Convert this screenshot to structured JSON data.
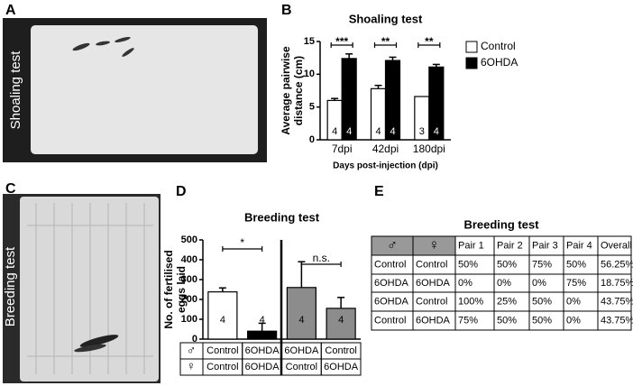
{
  "panel_letters": [
    "A",
    "B",
    "C",
    "D",
    "E"
  ],
  "photo_labels": [
    "Shoaling test",
    "Breeding test"
  ],
  "chart_data": [
    {
      "type": "grouped_bar",
      "title": "Shoaling test",
      "y_label": [
        "Average pairwise",
        "distance (cm)"
      ],
      "x_label": "Days post-injection (dpi)",
      "categories": [
        "7dpi",
        "42dpi",
        "180dpi"
      ],
      "series": [
        {
          "name": "Control",
          "color": "#ffffff",
          "values": [
            6,
            7.8,
            6.6
          ],
          "errors": [
            0.3,
            0.5,
            null
          ],
          "n_labels": [
            "4",
            "4",
            "3"
          ]
        },
        {
          "name": "6OHDA",
          "color": "#000000",
          "values": [
            12.4,
            12.1,
            11.1
          ],
          "errors": [
            0.7,
            0.5,
            0.4
          ],
          "n_labels": [
            "4",
            "4",
            "4"
          ]
        }
      ],
      "significance": [
        "***",
        "**",
        "**"
      ],
      "ylim": [
        0,
        15
      ],
      "yticks": [
        0,
        5,
        10,
        15
      ]
    },
    {
      "type": "bar",
      "title": "Breeding test",
      "y_label": [
        "No. of fertilised",
        "eggs laid"
      ],
      "row_labels": [
        "♂",
        "♀"
      ],
      "male": [
        "Control",
        "6OHDA",
        "6OHDA",
        "Control"
      ],
      "female": [
        "Control",
        "6OHDA",
        "Control",
        "6OHDA"
      ],
      "values": [
        238,
        40,
        260,
        155
      ],
      "errors": [
        20,
        40,
        130,
        55
      ],
      "colors": [
        "#ffffff",
        "#000000",
        "#8c8c8c",
        "#8c8c8c"
      ],
      "n_labels": [
        "4",
        "4",
        "4",
        "4"
      ],
      "significance": [
        "*",
        "n.s."
      ],
      "ylim": [
        0,
        500
      ],
      "yticks": [
        0,
        100,
        200,
        300,
        400,
        500
      ]
    }
  ],
  "table": {
    "title": "Breeding test",
    "header": [
      "♂",
      "♀",
      "Pair 1",
      "Pair 2",
      "Pair 3",
      "Pair 4",
      "Overall"
    ],
    "rows": [
      [
        "Control",
        "Control",
        "50%",
        "50%",
        "75%",
        "50%",
        "56.25%"
      ],
      [
        "6OHDA",
        "6OHDA",
        "0%",
        "0%",
        "0%",
        "75%",
        "18.75%"
      ],
      [
        "6OHDA",
        "Control",
        "100%",
        "25%",
        "50%",
        "0%",
        "43.75%"
      ],
      [
        "Control",
        "6OHDA",
        "75%",
        "50%",
        "50%",
        "0%",
        "43.75%"
      ]
    ]
  }
}
